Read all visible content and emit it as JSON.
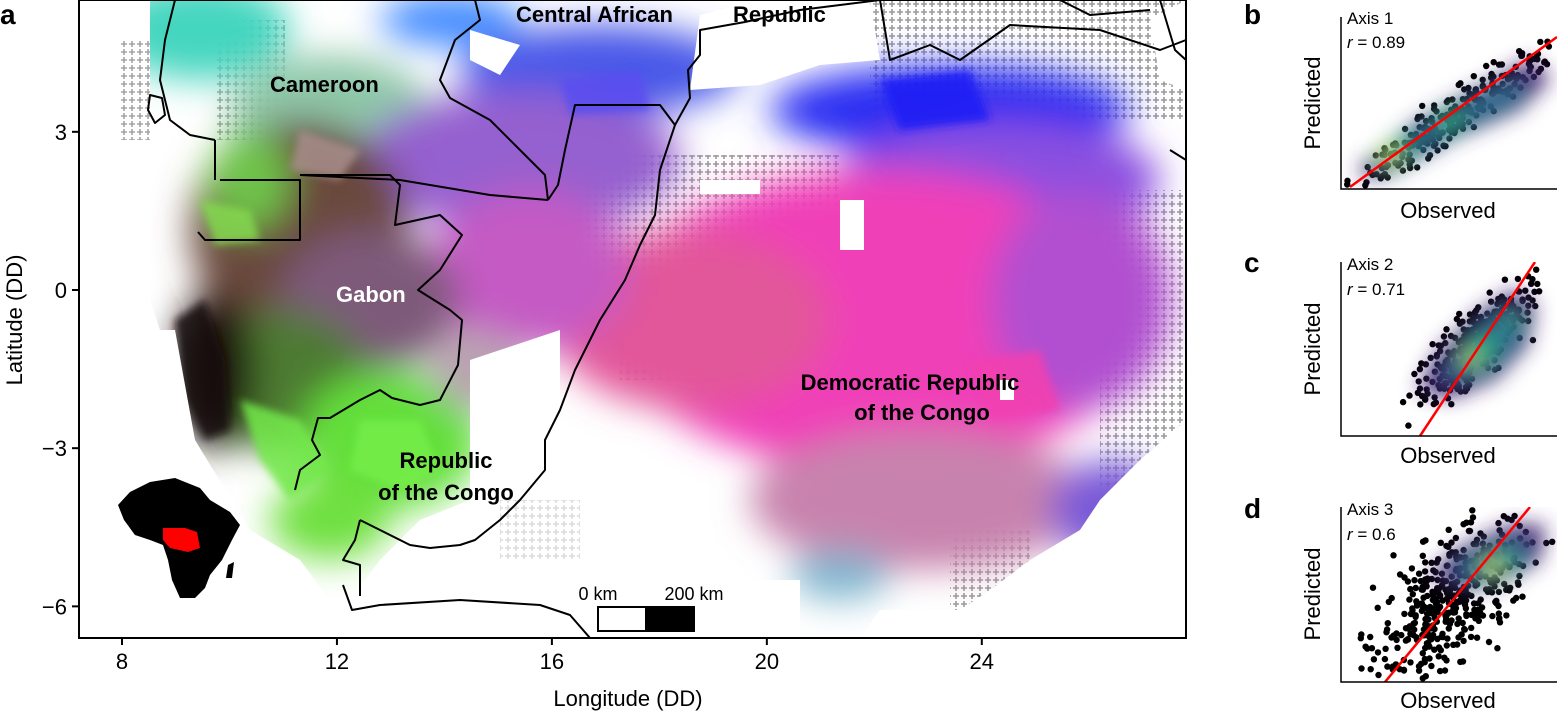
{
  "panels": {
    "a": "a",
    "b": "b",
    "c": "c",
    "d": "d"
  },
  "map": {
    "x_label": "Longitude (DD)",
    "y_label": "Latitude (DD)",
    "x_ticks": [
      "8",
      "12",
      "16",
      "20",
      "24"
    ],
    "y_ticks": [
      "3",
      "0",
      "−3",
      "−6"
    ],
    "x_range": [
      7.2,
      27.8
    ],
    "y_range": [
      -6.6,
      5.5
    ],
    "countries": {
      "car_a": "Central African",
      "car_b": "Republic",
      "cameroon": "Cameroon",
      "gabon": "Gabon",
      "roc_1": "Republic",
      "roc_2": "of the Congo",
      "drc_1": "Democratic Republic",
      "drc_2": "of the Congo"
    },
    "scale_bar": {
      "start": "0 km",
      "end": "200 km"
    },
    "colors": {
      "no_data_marker": "#9a9a9a",
      "border": "#000000",
      "inset_highlight": "#ff0000"
    }
  },
  "scatter_panels": [
    {
      "letter": "b",
      "axis_name": "Axis 1",
      "r_symbol": "r",
      "r_value": " = 0.89",
      "xlabel": "Observed",
      "ylabel": "Predicted"
    },
    {
      "letter": "c",
      "axis_name": "Axis 2",
      "r_symbol": "r",
      "r_value": " = 0.71",
      "xlabel": "Observed",
      "ylabel": "Predicted"
    },
    {
      "letter": "d",
      "axis_name": "Axis 3",
      "r_symbol": "r",
      "r_value": " = 0.6",
      "xlabel": "Observed",
      "ylabel": "Predicted"
    }
  ]
}
